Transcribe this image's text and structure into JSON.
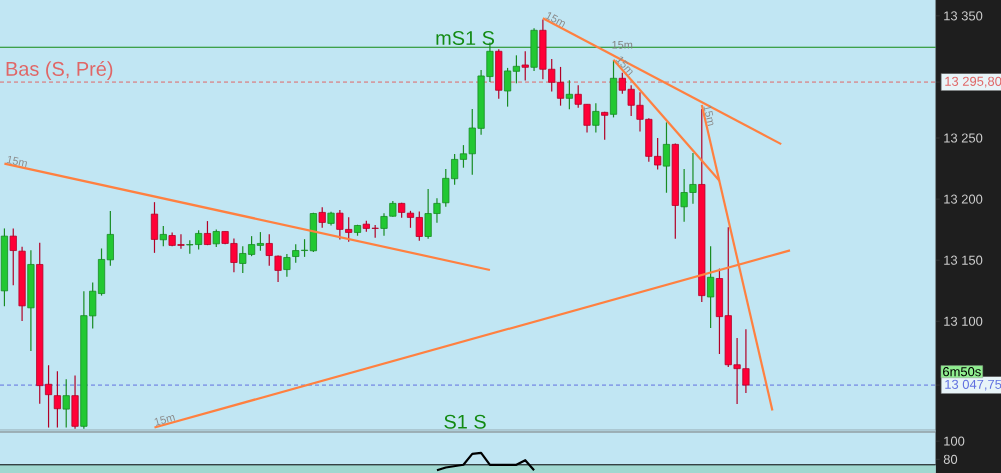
{
  "chart_data": [
    {
      "type": "candlestick",
      "categories": [
        null,
        null,
        null,
        null,
        null,
        null,
        null,
        null,
        null,
        null,
        null,
        null,
        null,
        null,
        null,
        null,
        null,
        null,
        null,
        null,
        null,
        null,
        null,
        null,
        null,
        null,
        null,
        null,
        null,
        null,
        null,
        null,
        null,
        null,
        null,
        null,
        null,
        null,
        null,
        null,
        null,
        null,
        null,
        null,
        null,
        null,
        null,
        null,
        null,
        null,
        null,
        null,
        null,
        null,
        null,
        null,
        null,
        null,
        null,
        null,
        null,
        null,
        null,
        null,
        null,
        null,
        null,
        null,
        null,
        null,
        null,
        null,
        null,
        null,
        null,
        null,
        null,
        null,
        null,
        null,
        null,
        null,
        null,
        null,
        null,
        null,
        null,
        null,
        null,
        null,
        null,
        null,
        null,
        null,
        null,
        null,
        null,
        null,
        null,
        null,
        null,
        null,
        null,
        null,
        null,
        null
      ],
      "ohlc": [
        [
          13124.9,
          13176,
          13112.3,
          13169.7
        ],
        [
          13169.7,
          13176,
          13129.5,
          13157.9
        ],
        [
          13157.4,
          13161,
          13100.3,
          13112.6
        ],
        [
          13111,
          13158.2,
          13075.7,
          13146.5
        ],
        [
          13146.5,
          13164.2,
          13032.5,
          13047.3
        ],
        [
          13048.4,
          13064,
          13013,
          13039.9
        ],
        [
          13039.1,
          13059,
          13013,
          13028.4
        ],
        [
          13028.1,
          13052.5,
          13013,
          13039.1
        ],
        [
          13039.1,
          13055.7,
          13012,
          13014
        ],
        [
          13014,
          13124.6,
          13012,
          13104.6
        ],
        [
          13104.4,
          13131.7,
          13094,
          13124.6
        ],
        [
          13122.7,
          13159.6,
          13121,
          13150.6
        ],
        [
          13150.3,
          13190.2,
          13145.4,
          13171.1
        ],
        null,
        null,
        null,
        null,
        [
          13187.7,
          13197.5,
          13156,
          13167
        ],
        [
          13166.7,
          13177.9,
          13161.5,
          13171.1
        ],
        [
          13170.2,
          13172.7,
          13161.5,
          13162.1
        ],
        [
          13162.8,
          13171.3,
          13159.3,
          13162.1
        ],
        [
          13162.5,
          13166.4,
          13155.2,
          13162.8
        ],
        [
          13162.8,
          13174.6,
          13158.7,
          13171.9
        ],
        [
          13171.9,
          13182,
          13162.3,
          13162.8
        ],
        [
          13163.4,
          13175.2,
          13160.7,
          13173.5
        ],
        [
          13173.5,
          13173.5,
          13163.1,
          13163.7
        ],
        [
          13163.7,
          13167.8,
          13140.2,
          13148.1
        ],
        [
          13147.3,
          13161.5,
          13139.6,
          13155.5
        ],
        [
          13154.7,
          13169.7,
          13153.3,
          13162.8
        ],
        [
          13162.1,
          13173,
          13157.7,
          13163.7
        ],
        [
          13163.7,
          13171.3,
          13145.4,
          13153.8
        ],
        [
          13153.3,
          13153.8,
          13132.2,
          13141.6
        ],
        [
          13142.3,
          13155,
          13136.4,
          13152.2
        ],
        [
          13153,
          13163.1,
          13147.8,
          13157.9
        ],
        [
          13157.9,
          13167.2,
          13152.7,
          13158.2
        ],
        [
          13157.7,
          13188.8,
          13156.8,
          13188.2
        ],
        [
          13189.1,
          13193.4,
          13176.5,
          13180.9
        ],
        [
          13180.1,
          13189.6,
          13178.4,
          13188.5
        ],
        [
          13188.5,
          13191,
          13167,
          13175.2
        ],
        [
          13175.2,
          13185.2,
          13165,
          13172.7
        ],
        [
          13172.7,
          13179,
          13170,
          13178.4
        ],
        [
          13179.5,
          13182.3,
          13173.2,
          13176
        ],
        [
          13176.2,
          13178.7,
          13168.3,
          13176
        ],
        [
          13176,
          13188.5,
          13170,
          13185.8
        ],
        [
          13186,
          13198.4,
          13185.5,
          13196.5
        ],
        [
          13196.5,
          13197,
          13184.7,
          13189.1
        ],
        [
          13188.5,
          13190.4,
          13176.5,
          13185
        ],
        [
          13185,
          13189.9,
          13165.9,
          13169.4
        ],
        [
          13169.4,
          13208.2,
          13167.5,
          13188.2
        ],
        [
          13188.2,
          13200.8,
          13180.6,
          13196.5
        ],
        [
          13197,
          13224.6,
          13193.7,
          13217
        ],
        [
          13216.7,
          13236.9,
          13211.8,
          13232.5
        ],
        [
          13232.5,
          13244.2,
          13225.7,
          13237.1
        ],
        [
          13237.1,
          13273.8,
          13219.9,
          13258.2
        ],
        [
          13257.9,
          13305.7,
          13252.7,
          13300.8
        ],
        [
          13300.3,
          13328.1,
          13295.9,
          13321
        ],
        [
          13321,
          13322.7,
          13282.2,
          13289.1
        ],
        [
          13288.5,
          13307.4,
          13275.7,
          13304.9
        ],
        [
          13304.6,
          13317.7,
          13294.8,
          13308.7
        ],
        [
          13309.8,
          13321,
          13297,
          13307.9
        ],
        [
          13307.9,
          13339.9,
          13304.9,
          13338.2
        ],
        [
          13338.2,
          13347,
          13298.1,
          13306.3
        ],
        [
          13306.3,
          13314.7,
          13288,
          13295.6
        ],
        [
          13295.6,
          13308.2,
          13276.5,
          13282.5
        ],
        [
          13282.5,
          13297.2,
          13273.5,
          13285.8
        ],
        [
          13285.8,
          13293.2,
          13274.8,
          13277.6
        ],
        [
          13277.6,
          13277.6,
          13254.6,
          13260.4
        ],
        [
          13260.4,
          13278.4,
          13254.6,
          13271.8
        ],
        [
          13271,
          13271.6,
          13248.6,
          13268.6
        ],
        [
          13269.4,
          13313.9,
          13266.9,
          13298.9
        ],
        [
          13298.9,
          13303.5,
          13286.3,
          13289.1
        ],
        [
          13289.9,
          13293.2,
          13268,
          13276.8
        ],
        [
          13276.8,
          13287.4,
          13255.4,
          13265.3
        ],
        [
          13265.3,
          13266.1,
          13230.6,
          13235
        ],
        [
          13235,
          13250,
          13224.3,
          13227.9
        ],
        [
          13227,
          13262.8,
          13205.2,
          13244.8
        ],
        [
          13244.8,
          13245.6,
          13167.5,
          13194.8
        ],
        [
          13193.7,
          13224.6,
          13181.4,
          13205.4
        ],
        [
          13205.4,
          13237.7,
          13196.1,
          13212
        ],
        [
          13212,
          13273.7,
          13115.8,
          13121
        ],
        [
          13119.9,
          13161.4,
          13094.5,
          13136
        ],
        [
          13135,
          13143.1,
          13073.2,
          13103.8
        ],
        [
          13104.6,
          13177,
          13062.5,
          13064.4
        ],
        [
          13064.4,
          13086.3,
          13032.2,
          13061.2
        ],
        [
          13061.2,
          13093.4,
          13041.2,
          13047.75
        ],
        null,
        null,
        null,
        null,
        null,
        null,
        null,
        null,
        null,
        null,
        null,
        null,
        null,
        null,
        null,
        null,
        null,
        null,
        null,
        null,
        null
      ],
      "colors": [
        "#22c832",
        "#ff0037",
        "#ff0037",
        "#22c832",
        "#ff0037",
        "#ff0037",
        "#ff0037",
        "#22c832",
        "#ff0037",
        "#22c832",
        "#22c832",
        "#22c832",
        "#22c832",
        null,
        null,
        null,
        null,
        "#ff0037",
        "#22c832",
        "#ff0037",
        "#ff0037",
        "#22c832",
        "#22c832",
        "#ff0037",
        "#22c832",
        "#ff0037",
        "#ff0037",
        "#22c832",
        "#22c832",
        "#22c832",
        "#ff0037",
        "#ff0037",
        "#22c832",
        "#22c832",
        "#22c832",
        "#22c832",
        "#ff0037",
        "#22c832",
        "#ff0037",
        "#ff0037",
        "#22c832",
        "#ff0037",
        "#ff0037",
        "#22c832",
        "#22c832",
        "#ff0037",
        "#ff0037",
        "#ff0037",
        "#22c832",
        "#22c832",
        "#22c832",
        "#22c832",
        "#22c832",
        "#22c832",
        "#22c832",
        "#22c832",
        "#ff0037",
        "#22c832",
        "#22c832",
        "#ff0037",
        "#22c832",
        "#ff0037",
        "#ff0037",
        "#ff0037",
        "#22c832",
        "#ff0037",
        "#ff0037",
        "#22c832",
        "#ff0037",
        "#22c832",
        "#ff0037",
        "#ff0037",
        "#ff0037",
        "#ff0037",
        "#ff0037",
        "#22c832",
        "#ff0037",
        "#22c832",
        "#22c832",
        "#ff0037",
        "#22c832",
        "#ff0037",
        "#ff0037",
        "#ff0037",
        "#ff0037",
        null,
        null,
        null,
        null,
        null,
        null,
        null,
        null,
        null,
        null,
        null,
        null,
        null,
        null,
        null,
        null,
        null,
        null,
        null,
        null,
        null
      ],
      "series": [
        {
          "type": "line",
          "name": "15m",
          "color": "#ff8040",
          "values": [
            13229,
            null,
            null,
            null,
            null,
            null,
            null,
            null,
            null,
            null,
            null,
            null,
            null,
            null,
            null,
            null,
            null,
            null,
            null,
            null,
            null,
            null,
            null,
            null,
            null,
            null,
            null,
            null,
            null,
            null,
            null,
            null,
            null,
            null,
            null,
            null,
            null,
            null,
            null,
            null,
            null,
            null,
            null,
            null,
            null,
            null,
            null,
            null,
            null,
            null,
            null,
            null,
            null,
            null,
            null,
            13142,
            null,
            null,
            null,
            null,
            null,
            null,
            null,
            null,
            null,
            null,
            null,
            null,
            null,
            null,
            null,
            null,
            null,
            null,
            null,
            null,
            null,
            null,
            null,
            null,
            null,
            null,
            null,
            null,
            null,
            null,
            null,
            null,
            null,
            null,
            null,
            null,
            null,
            null,
            null,
            null,
            null,
            null,
            null,
            null,
            null,
            null,
            null,
            null,
            null,
            null
          ]
        },
        {
          "type": "line",
          "name": "15m",
          "color": "#ff8040",
          "values": [
            null,
            null,
            null,
            null,
            null,
            null,
            null,
            null,
            null,
            null,
            null,
            null,
            null,
            null,
            null,
            null,
            null,
            13013,
            null,
            null,
            null,
            null,
            null,
            null,
            null,
            null,
            null,
            null,
            null,
            null,
            null,
            null,
            null,
            null,
            null,
            null,
            null,
            null,
            null,
            null,
            null,
            null,
            null,
            null,
            null,
            null,
            null,
            null,
            null,
            null,
            null,
            null,
            null,
            null,
            null,
            null,
            null,
            null,
            null,
            null,
            null,
            null,
            null,
            null,
            null,
            null,
            null,
            null,
            null,
            null,
            null,
            null,
            null,
            null,
            null,
            null,
            null,
            null,
            null,
            null,
            null,
            null,
            null,
            null,
            null,
            null,
            null,
            null,
            null,
            13158,
            null,
            null,
            null,
            null,
            null,
            null,
            null,
            null,
            null,
            null,
            null,
            null,
            null,
            null,
            null,
            null
          ]
        },
        {
          "type": "line",
          "name": "15m",
          "color": "#ff8040",
          "values": [
            null,
            null,
            null,
            null,
            null,
            null,
            null,
            null,
            null,
            null,
            null,
            null,
            null,
            null,
            null,
            null,
            null,
            null,
            null,
            null,
            null,
            null,
            null,
            null,
            null,
            null,
            null,
            null,
            null,
            null,
            null,
            null,
            null,
            null,
            null,
            null,
            null,
            null,
            null,
            null,
            null,
            null,
            null,
            null,
            null,
            null,
            null,
            null,
            null,
            null,
            null,
            null,
            null,
            null,
            null,
            null,
            null,
            null,
            null,
            null,
            null,
            13348,
            null,
            null,
            null,
            null,
            null,
            null,
            null,
            null,
            null,
            null,
            null,
            null,
            null,
            null,
            null,
            null,
            null,
            null,
            null,
            null,
            null,
            null,
            null,
            null,
            null,
            null,
            13245,
            null,
            null,
            null,
            null,
            null,
            null,
            null,
            null,
            null,
            null,
            null,
            null,
            null,
            null,
            null,
            null,
            null
          ]
        },
        {
          "type": "line",
          "name": "15m",
          "color": "#ff8040",
          "values": [
            null,
            null,
            null,
            null,
            null,
            null,
            null,
            null,
            null,
            null,
            null,
            null,
            null,
            null,
            null,
            null,
            null,
            null,
            null,
            null,
            null,
            null,
            null,
            null,
            null,
            null,
            null,
            null,
            null,
            null,
            null,
            null,
            null,
            null,
            null,
            null,
            null,
            null,
            null,
            null,
            null,
            null,
            null,
            null,
            null,
            null,
            null,
            null,
            null,
            null,
            null,
            null,
            null,
            null,
            null,
            null,
            null,
            null,
            null,
            null,
            null,
            null,
            null,
            null,
            null,
            null,
            null,
            null,
            null,
            13314,
            null,
            null,
            null,
            null,
            null,
            null,
            null,
            null,
            null,
            null,
            null,
            13215,
            null,
            null,
            null,
            null,
            null,
            null,
            null,
            null,
            null,
            null,
            null,
            null,
            null,
            null,
            null,
            null,
            null,
            null,
            null,
            null,
            null,
            null,
            null,
            null
          ]
        },
        {
          "type": "line",
          "name": "15m",
          "color": "#ff8040",
          "values": [
            null,
            null,
            null,
            null,
            null,
            null,
            null,
            null,
            null,
            null,
            null,
            null,
            null,
            null,
            null,
            null,
            null,
            null,
            null,
            null,
            null,
            null,
            null,
            null,
            null,
            null,
            null,
            null,
            null,
            null,
            null,
            null,
            null,
            null,
            null,
            null,
            null,
            null,
            null,
            null,
            null,
            null,
            null,
            null,
            null,
            null,
            null,
            null,
            null,
            null,
            null,
            null,
            null,
            null,
            null,
            null,
            null,
            null,
            null,
            null,
            null,
            null,
            null,
            null,
            null,
            null,
            null,
            null,
            null,
            null,
            null,
            null,
            null,
            null,
            null,
            null,
            null,
            null,
            null,
            13277,
            null,
            null,
            null,
            null,
            null,
            null,
            null,
            13027,
            null,
            null,
            null,
            null,
            null,
            null,
            null,
            null,
            null,
            null,
            null,
            null,
            null,
            null,
            null,
            null,
            null,
            null
          ]
        }
      ],
      "ylim": [
        13011,
        13363
      ],
      "yticks": [
        {
          "value": 13100,
          "label": "13 100"
        },
        {
          "value": 13150,
          "label": "13 150"
        },
        {
          "value": 13200,
          "label": "13 200"
        },
        {
          "value": 13250,
          "label": "13 250"
        },
        {
          "value": 13350,
          "label": "13 350"
        },
        {
          "value": 13295.8,
          "label": "13 295,80"
        },
        {
          "value": 13047.75,
          "label": "13 047,75"
        }
      ],
      "ref_lines": [
        {
          "axis": "y",
          "value": 13324.3,
          "label": "mS1 S",
          "color": "#128a12"
        },
        {
          "axis": "y",
          "value": 13295.8,
          "label": "Bas (S, Pré)",
          "color": "#e06666",
          "line_style": "dashed"
        },
        {
          "axis": "y",
          "value": 13047.75,
          "color": "#6070e0",
          "line_style": "dashed"
        }
      ],
      "annotations": [
        "15m",
        "6m50s",
        "S1 S"
      ],
      "tick_labels": "y"
    },
    {
      "type": "line",
      "categories": [
        null,
        null,
        null,
        null,
        null,
        null,
        null,
        null,
        null,
        null,
        null,
        null,
        null,
        null,
        null,
        null,
        null,
        null,
        null,
        null,
        null,
        null,
        null,
        null,
        null,
        null,
        null,
        null,
        null,
        null,
        null,
        null,
        null,
        null,
        null,
        null,
        null,
        null,
        null,
        null,
        null,
        null,
        null,
        null,
        null,
        null,
        null,
        null,
        null,
        null,
        null,
        null,
        null,
        null,
        null,
        null,
        null,
        null,
        null,
        null,
        null,
        null,
        null,
        null,
        null,
        null,
        null,
        null,
        null,
        null,
        null,
        null,
        null,
        null,
        null,
        null,
        null,
        null,
        null,
        null,
        null,
        null,
        null,
        null,
        null,
        null,
        null,
        null,
        null,
        null,
        null,
        null,
        null,
        null,
        null,
        null,
        null,
        null,
        null,
        null,
        null,
        null,
        null,
        null,
        null,
        null
      ],
      "series": [
        {
          "color": "#000000",
          "values": [
            null,
            null,
            null,
            null,
            null,
            null,
            null,
            null,
            null,
            null,
            null,
            null,
            null,
            null,
            null,
            null,
            null,
            null,
            null,
            null,
            null,
            null,
            null,
            null,
            null,
            null,
            null,
            null,
            null,
            null,
            null,
            null,
            null,
            null,
            null,
            null,
            null,
            null,
            null,
            null,
            null,
            null,
            null,
            null,
            null,
            null,
            null,
            null,
            null,
            68,
            71,
            null,
            74,
            86,
            87,
            74,
            74,
            null,
            74,
            79,
            68,
            null,
            null,
            null,
            null,
            null,
            null,
            null,
            null,
            null,
            null,
            null,
            null,
            null,
            null,
            null,
            null,
            null,
            null,
            null,
            null,
            null,
            null,
            null,
            null,
            null,
            null,
            null,
            null,
            null,
            null,
            null,
            null,
            null,
            null,
            null,
            null,
            null,
            null,
            null,
            null,
            null,
            null,
            null,
            null,
            null
          ]
        }
      ],
      "ylim": [
        65,
        110
      ],
      "yticks": [
        100,
        80
      ],
      "ref_lines": [
        {
          "axis": "y",
          "value": 74,
          "color": "#000000"
        }
      ],
      "bands": [
        {
          "axis": "y",
          "from": 65,
          "to": 74,
          "color": "#a0d8d0"
        }
      ],
      "tick_labels": "y"
    }
  ]
}
